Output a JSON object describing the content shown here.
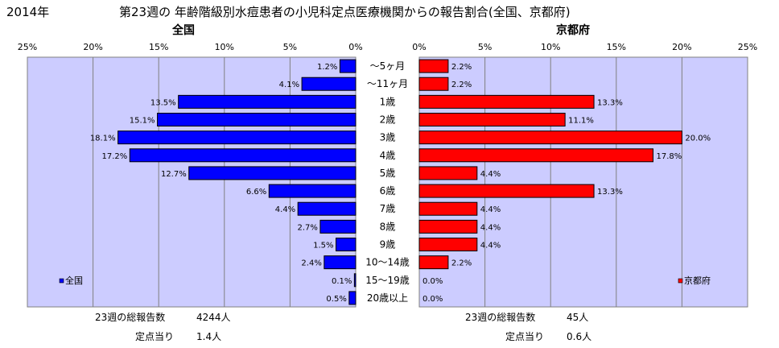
{
  "header": {
    "year": "2014年",
    "title": "第23週の 年齢階級別水痘患者の小児科定点医療機関からの報告割合(全国、京都府)"
  },
  "colors": {
    "plot_bg": "#ccccff",
    "national_bar": "#0000ff",
    "kyoto_bar": "#ff0000",
    "grid": "#808080",
    "bar_border": "#000000"
  },
  "chart_data": [
    {
      "type": "bar",
      "orientation": "horizontal",
      "direction": "right-to-left",
      "title": "全国",
      "legend": "全国",
      "legend_position": "bottom-left",
      "xlim": [
        0,
        25
      ],
      "tick_labels": [
        "25%",
        "20%",
        "15%",
        "10%",
        "5%",
        "0%"
      ],
      "grid": true,
      "categories": [
        "～5ヶ月",
        "～11ヶ月",
        "1歳",
        "2歳",
        "3歳",
        "4歳",
        "5歳",
        "6歳",
        "7歳",
        "8歳",
        "9歳",
        "10～14歳",
        "15～19歳",
        "20歳以上"
      ],
      "values": [
        1.2,
        4.1,
        13.5,
        15.1,
        18.1,
        17.2,
        12.7,
        6.6,
        4.4,
        2.7,
        1.5,
        2.4,
        0.1,
        0.5
      ],
      "value_labels": [
        "1.2%",
        "4.1%",
        "13.5%",
        "15.1%",
        "18.1%",
        "17.2%",
        "12.7%",
        "6.6%",
        "4.4%",
        "2.7%",
        "1.5%",
        "2.4%",
        "0.1%",
        "0.5%"
      ]
    },
    {
      "type": "bar",
      "orientation": "horizontal",
      "direction": "left-to-right",
      "title": "京都府",
      "legend": "京都府",
      "legend_position": "bottom-right",
      "xlim": [
        0,
        25
      ],
      "tick_labels": [
        "0%",
        "5%",
        "10%",
        "15%",
        "20%",
        "25%"
      ],
      "grid": true,
      "categories": [
        "～5ヶ月",
        "～11ヶ月",
        "1歳",
        "2歳",
        "3歳",
        "4歳",
        "5歳",
        "6歳",
        "7歳",
        "8歳",
        "9歳",
        "10～14歳",
        "15～19歳",
        "20歳以上"
      ],
      "values": [
        2.2,
        2.2,
        13.3,
        11.1,
        20.0,
        17.8,
        4.4,
        13.3,
        4.4,
        4.4,
        4.4,
        2.2,
        0.0,
        0.0
      ],
      "value_labels": [
        "2.2%",
        "2.2%",
        "13.3%",
        "11.1%",
        "20.0%",
        "17.8%",
        "4.4%",
        "13.3%",
        "4.4%",
        "4.4%",
        "4.4%",
        "2.2%",
        "0.0%",
        "0.0%"
      ]
    }
  ],
  "footer": {
    "national_total_label": "23週の総報告数",
    "national_total_value": "4244人",
    "national_per_label": "定点当り",
    "national_per_value": "1.4人",
    "kyoto_total_label": "23週の総報告数",
    "kyoto_total_value": "45人",
    "kyoto_per_label": "定点当り",
    "kyoto_per_value": "0.6人"
  }
}
